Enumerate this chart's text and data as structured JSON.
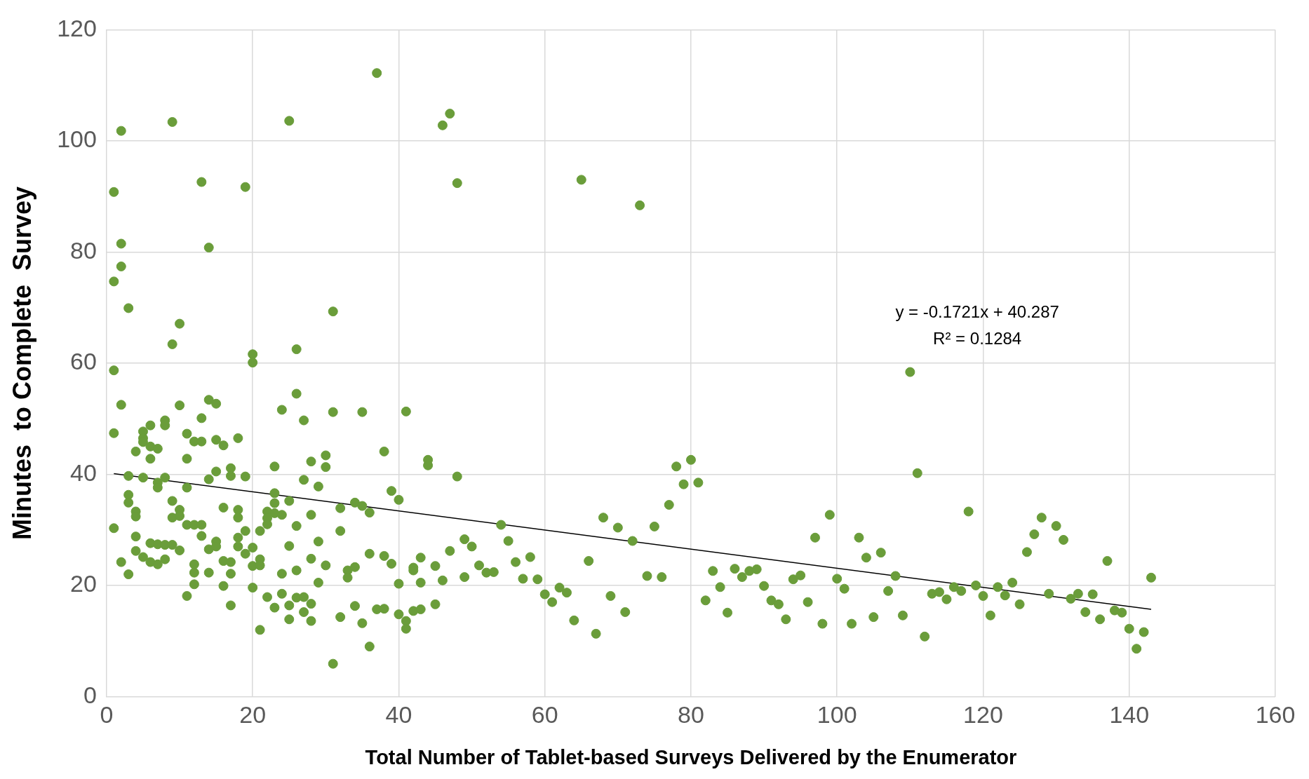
{
  "chart_data": {
    "type": "scatter",
    "xlabel": "Total Number of Tablet-based Surveys Delivered by the Enumerator",
    "ylabel": "Minutes  to Complete  Survey",
    "xlim": [
      0,
      160
    ],
    "xticks": [
      0,
      20,
      40,
      60,
      80,
      100,
      120,
      140,
      160
    ],
    "ylim": [
      0,
      120
    ],
    "yticks": [
      0,
      20,
      40,
      60,
      80,
      100,
      120
    ],
    "grid": true,
    "legend": false,
    "annotations": [
      "y = -0.1721x + 40.287",
      "R² = 0.1284"
    ],
    "series": [
      {
        "marker": "circle",
        "color": "#6a9d3a",
        "x": [
          1,
          1,
          1,
          1,
          1,
          2,
          2,
          2,
          2,
          2,
          3,
          3,
          3,
          3,
          3,
          4,
          4,
          4,
          4,
          4,
          5,
          5,
          5,
          5,
          5,
          6,
          6,
          6,
          6,
          6,
          7,
          7,
          7,
          7,
          7,
          8,
          8,
          8,
          8,
          8,
          9,
          9,
          9,
          9,
          9,
          10,
          10,
          10,
          10,
          10,
          11,
          11,
          11,
          11,
          11,
          12,
          12,
          12,
          12,
          12,
          13,
          13,
          13,
          13,
          13,
          14,
          14,
          14,
          14,
          14,
          15,
          15,
          15,
          15,
          15,
          16,
          16,
          16,
          16,
          17,
          17,
          17,
          17,
          17,
          18,
          18,
          18,
          18,
          18,
          19,
          19,
          19,
          19,
          20,
          20,
          20,
          20,
          20,
          21,
          21,
          21,
          21,
          22,
          22,
          22,
          22,
          23,
          23,
          23,
          23,
          23,
          24,
          24,
          24,
          24,
          25,
          25,
          25,
          25,
          25,
          26,
          26,
          26,
          26,
          26,
          27,
          27,
          27,
          27,
          28,
          28,
          28,
          28,
          28,
          29,
          29,
          29,
          30,
          30,
          30,
          31,
          31,
          31,
          32,
          32,
          32,
          33,
          33,
          34,
          34,
          34,
          35,
          35,
          35,
          36,
          36,
          36,
          37,
          37,
          38,
          38,
          38,
          39,
          39,
          40,
          40,
          40,
          41,
          41,
          41,
          42,
          42,
          42,
          43,
          43,
          43,
          44,
          44,
          45,
          45,
          46,
          46,
          47,
          47,
          48,
          48,
          49,
          49,
          50,
          51,
          52,
          53,
          54,
          55,
          56,
          57,
          58,
          59,
          60,
          61,
          62,
          63,
          64,
          65,
          66,
          67,
          68,
          69,
          70,
          71,
          72,
          73,
          74,
          75,
          76,
          77,
          78,
          79,
          80,
          81,
          82,
          83,
          84,
          85,
          86,
          87,
          88,
          89,
          90,
          91,
          92,
          93,
          94,
          95,
          96,
          97,
          98,
          99,
          100,
          101,
          102,
          103,
          104,
          105,
          106,
          107,
          108,
          109,
          110,
          111,
          112,
          113,
          114,
          115,
          116,
          117,
          118,
          119,
          120,
          121,
          122,
          123,
          124,
          125,
          126,
          127,
          128,
          129,
          130,
          131,
          132,
          133,
          134,
          135,
          136,
          137,
          138,
          139,
          140,
          141,
          142,
          143
        ],
        "values": [
          90.8,
          74.7,
          58.7,
          47.4,
          30.3,
          101.8,
          81.5,
          77.4,
          52.5,
          24.2,
          69.9,
          39.7,
          36.3,
          34.9,
          22,
          44.1,
          33.3,
          32.4,
          28.8,
          26.2,
          47.7,
          46.5,
          45.8,
          39.4,
          25.1,
          48.8,
          45,
          42.8,
          27.6,
          24.2,
          44.6,
          38.5,
          37.6,
          27.4,
          23.8,
          49.7,
          48.8,
          39.4,
          27.3,
          24.7,
          103.4,
          63.4,
          35.2,
          32.2,
          27.3,
          67.1,
          52.4,
          33.6,
          32.5,
          26.3,
          47.3,
          42.8,
          37.6,
          30.9,
          18.1,
          45.9,
          30.9,
          23.8,
          22.3,
          20.2,
          92.6,
          50.1,
          45.9,
          30.9,
          28.9,
          80.8,
          53.4,
          39.1,
          26.5,
          22.3,
          52.7,
          46.2,
          40.5,
          27.9,
          27,
          45.2,
          34,
          24.4,
          19.9,
          41.1,
          39.7,
          24.2,
          22.1,
          16.4,
          46.5,
          33.6,
          32.2,
          28.6,
          27,
          91.7,
          39.6,
          29.8,
          25.7,
          61.6,
          60.1,
          26.8,
          23.5,
          19.6,
          29.8,
          24.7,
          23.6,
          12,
          33.3,
          32.1,
          31,
          17.9,
          41.4,
          36.6,
          34.8,
          33,
          16,
          51.6,
          32.7,
          22.1,
          18.5,
          103.6,
          35.2,
          27.1,
          16.4,
          13.9,
          62.5,
          54.5,
          30.7,
          22.7,
          17.8,
          49.7,
          39,
          17.9,
          15.2,
          42.3,
          32.7,
          24.8,
          16.7,
          13.6,
          37.8,
          27.9,
          20.5,
          43.4,
          41.3,
          23.6,
          69.3,
          51.2,
          5.9,
          33.9,
          29.8,
          14.3,
          22.7,
          21.4,
          34.9,
          23.3,
          16.3,
          51.2,
          34.3,
          13.2,
          33.1,
          25.7,
          9,
          112.2,
          15.7,
          44.1,
          25.3,
          15.8,
          37,
          23.9,
          35.4,
          20.3,
          14.8,
          51.3,
          13.6,
          12.2,
          23.2,
          22.7,
          15.4,
          25,
          20.5,
          15.7,
          42.6,
          41.6,
          23.5,
          16.6,
          102.8,
          20.9,
          104.9,
          26.2,
          92.4,
          39.6,
          28.3,
          21.5,
          27,
          23.6,
          22.3,
          22.4,
          30.9,
          28,
          24.2,
          21.2,
          25.1,
          21.1,
          18.4,
          17,
          19.6,
          18.7,
          13.7,
          93,
          24.4,
          11.3,
          32.2,
          18.1,
          30.4,
          15.2,
          28,
          88.4,
          21.7,
          30.6,
          21.5,
          34.5,
          41.4,
          38.2,
          42.6,
          38.5,
          17.3,
          22.6,
          19.7,
          15.1,
          23,
          21.5,
          22.6,
          22.9,
          19.9,
          17.3,
          16.6,
          13.9,
          21.1,
          21.8,
          17,
          28.6,
          13.1,
          32.7,
          21.2,
          19.4,
          13.1,
          28.6,
          25,
          14.3,
          25.9,
          19,
          21.7,
          14.6,
          58.4,
          40.2,
          10.8,
          18.5,
          18.8,
          17.5,
          19.7,
          19,
          33.3,
          20,
          18.1,
          14.6,
          19.7,
          18.2,
          20.5,
          16.6,
          26,
          29.2,
          32.2,
          18.5,
          30.7,
          28.2,
          17.6,
          18.5,
          15.2,
          18.4,
          13.9,
          24.4,
          15.5,
          15.1,
          12.2,
          8.6,
          11.6,
          21.4
        ]
      },
      {
        "type": "line",
        "marker": "none",
        "color": "#000000",
        "x": [
          1,
          143
        ],
        "values": [
          40.1,
          15.7
        ]
      }
    ]
  }
}
